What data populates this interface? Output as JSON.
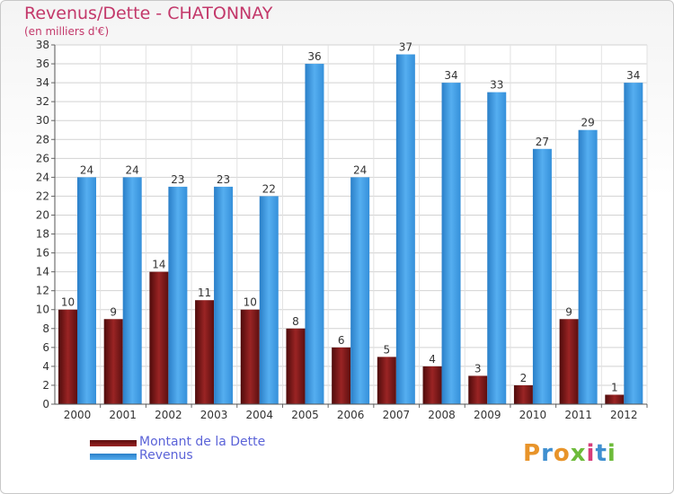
{
  "chart_data": {
    "type": "bar",
    "title": "Revenus/Dette - CHATONNAY",
    "subtitle": "(en milliers d'€)",
    "categories": [
      "2000",
      "2001",
      "2002",
      "2003",
      "2004",
      "2005",
      "2006",
      "2007",
      "2008",
      "2009",
      "2010",
      "2011",
      "2012"
    ],
    "series": [
      {
        "name": "Montant de la Dette",
        "color": "#8b1a1a",
        "values": [
          10,
          9,
          14,
          11,
          10,
          8,
          6,
          5,
          4,
          3,
          2,
          9,
          1
        ]
      },
      {
        "name": "Revenus",
        "color": "#3d9be0",
        "values": [
          24,
          24,
          23,
          23,
          22,
          36,
          24,
          37,
          34,
          33,
          27,
          29,
          34
        ]
      }
    ],
    "ylim": [
      0,
      38
    ],
    "yticks": [
      0,
      2,
      4,
      6,
      8,
      10,
      12,
      14,
      16,
      18,
      20,
      22,
      24,
      26,
      28,
      30,
      32,
      34,
      36,
      38
    ],
    "grid": true,
    "legend_position": "bottom-left"
  },
  "logo": {
    "letters": [
      "P",
      "r",
      "o",
      "x",
      "i",
      "t",
      "i"
    ],
    "colors": [
      "#e8942a",
      "#3f8fd0",
      "#e8942a",
      "#6dbb3a",
      "#d63b7a",
      "#3f8fd0",
      "#6dbb3a"
    ]
  }
}
